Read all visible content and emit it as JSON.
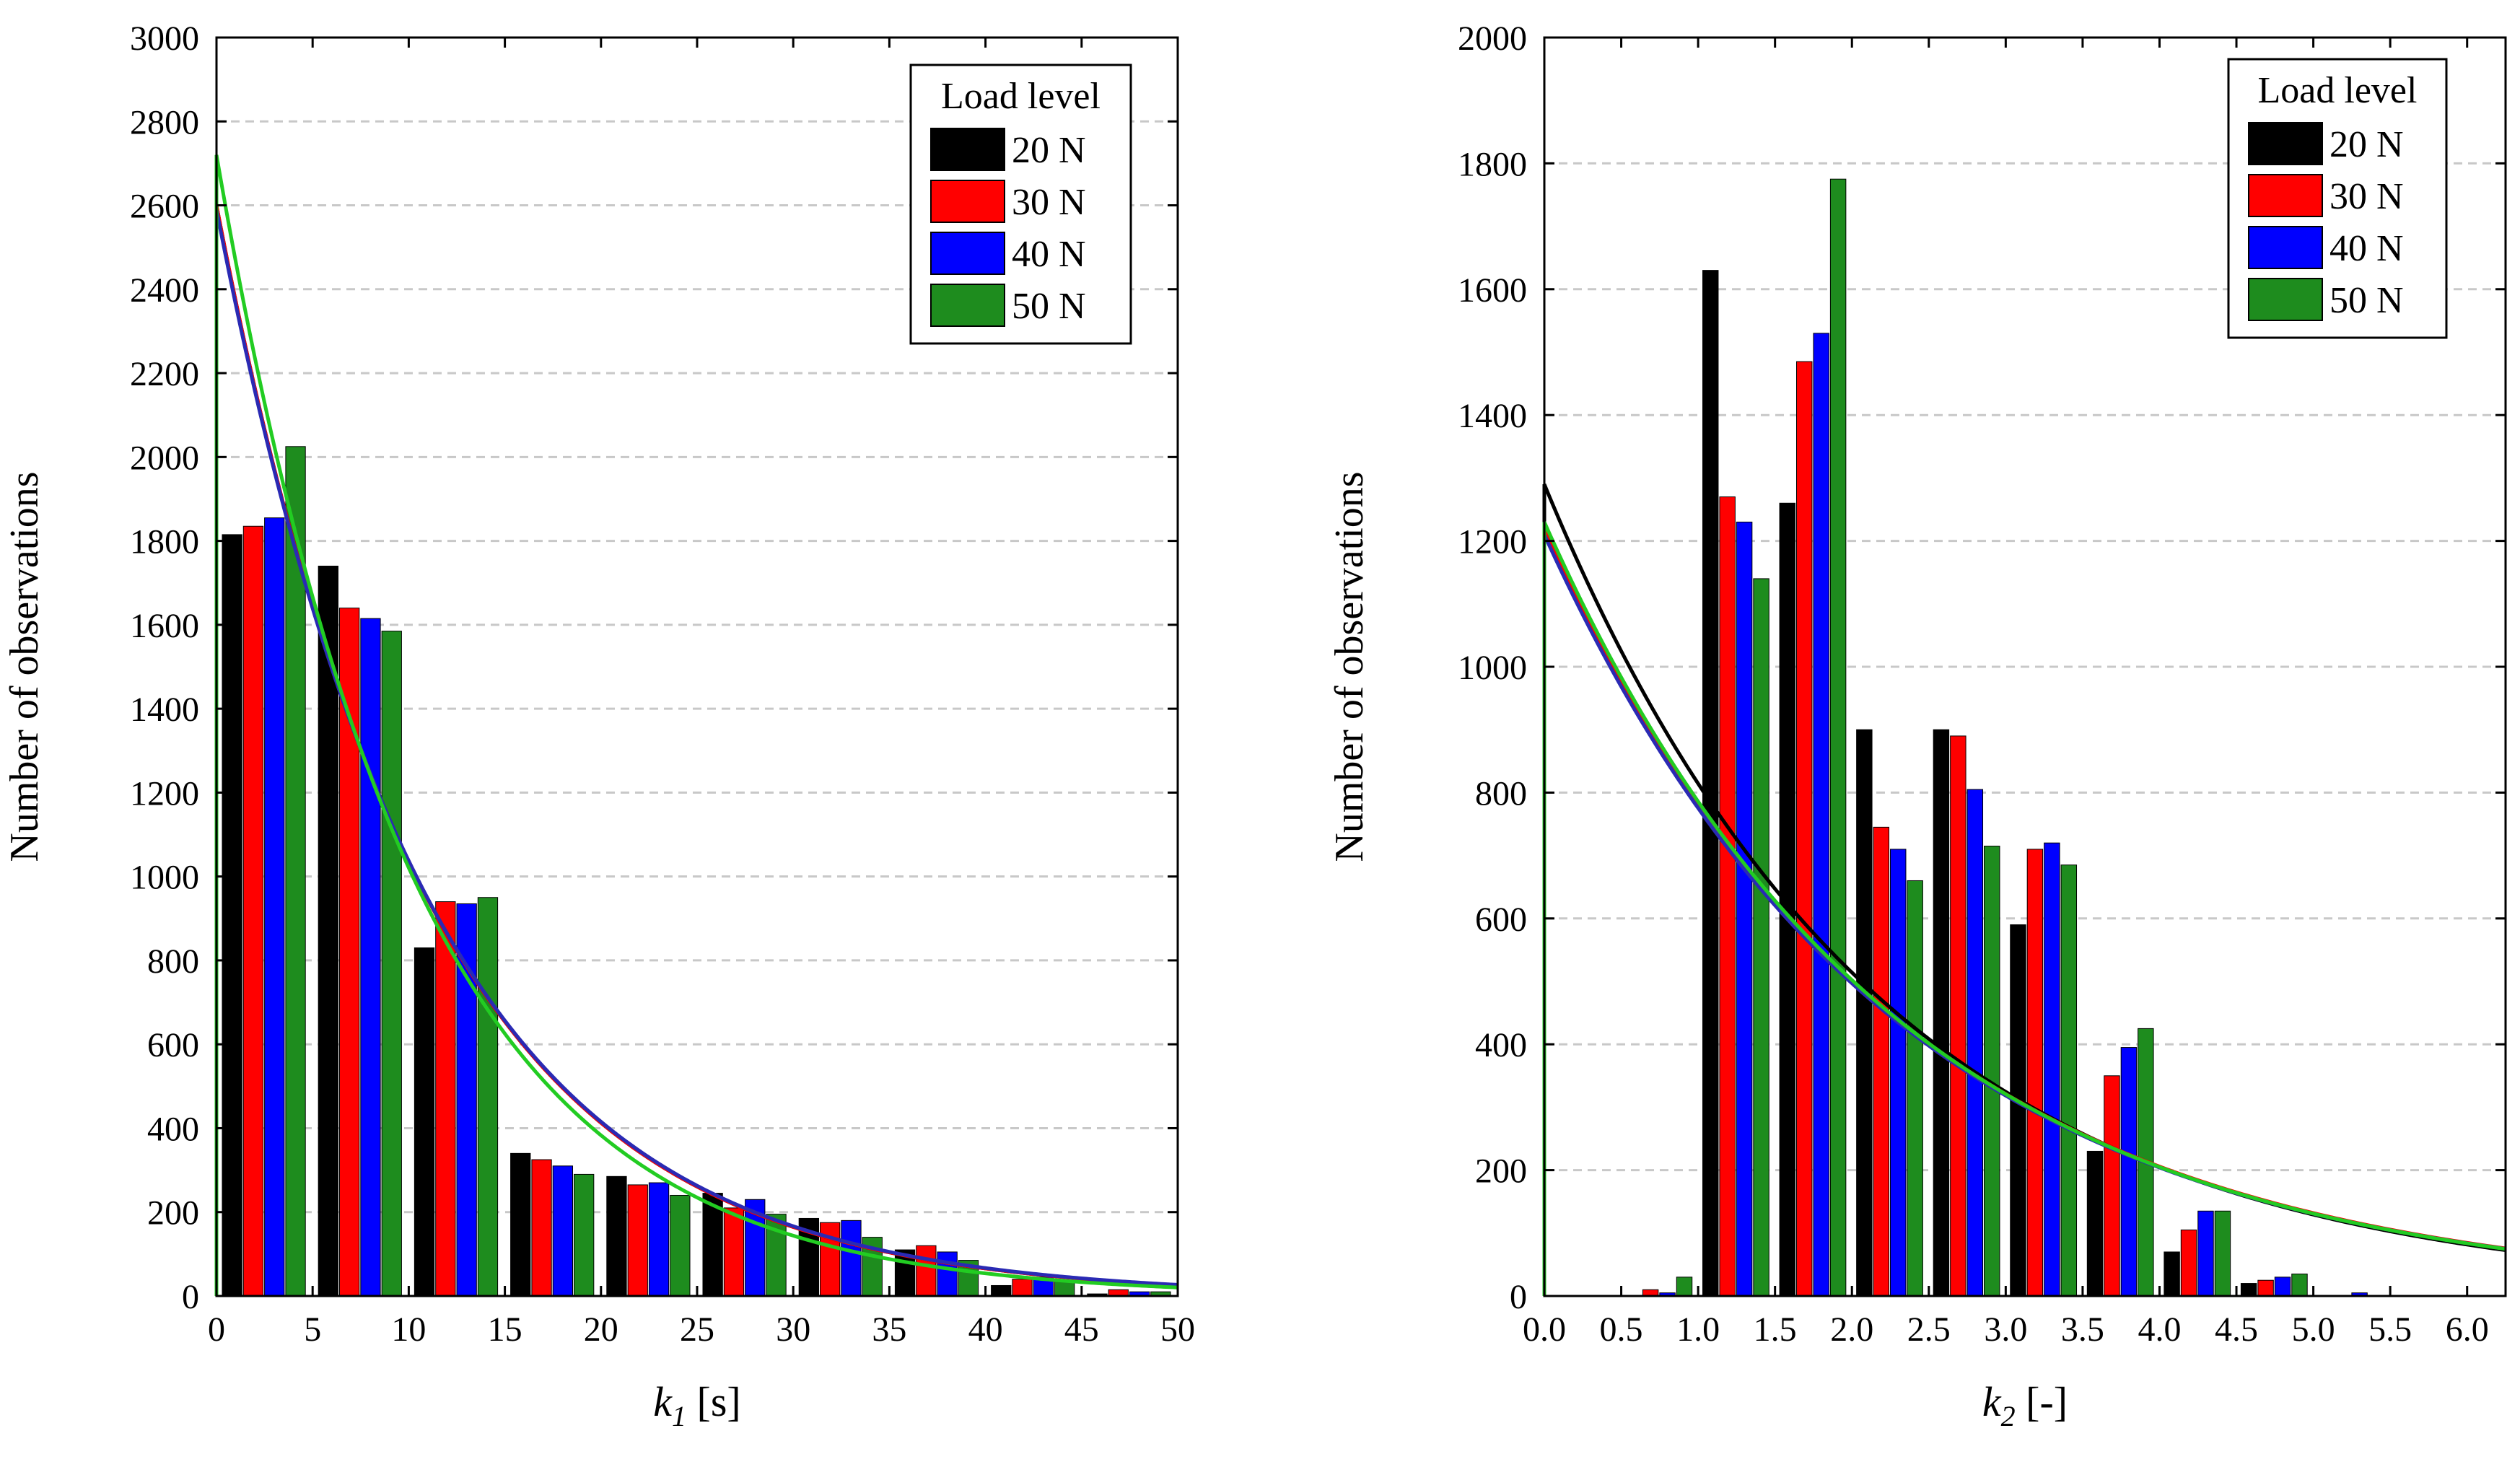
{
  "chart_data": [
    {
      "type": "bar",
      "title": "",
      "xlabel_var": "k",
      "xlabel_sub": "1",
      "xlabel_unit": " [s]",
      "ylabel": "Number of observations",
      "xlim": [
        0,
        50
      ],
      "ylim": [
        0,
        3000
      ],
      "xticks": [
        0,
        5,
        10,
        15,
        20,
        25,
        30,
        35,
        40,
        45,
        50
      ],
      "xtick_labels": [
        "0",
        "5",
        "10",
        "15",
        "20",
        "25",
        "30",
        "35",
        "40",
        "45",
        "50"
      ],
      "yticks": [
        0,
        200,
        400,
        600,
        800,
        1000,
        1200,
        1400,
        1600,
        1800,
        2000,
        2200,
        2400,
        2600,
        2800,
        3000
      ],
      "ytick_labels": [
        "0",
        "200",
        "400",
        "600",
        "800",
        "1000",
        "1200",
        "1400",
        "1600",
        "1800",
        "2000",
        "2200",
        "2400",
        "2600",
        "2800",
        "3000"
      ],
      "grid": "horizontal dashed",
      "bin_width": 5,
      "bin_starts": [
        0,
        5,
        10,
        15,
        20,
        25,
        30,
        35,
        40,
        45
      ],
      "series": [
        {
          "name": "20 N",
          "color": "#000000",
          "values": [
            1815,
            1740,
            830,
            340,
            285,
            245,
            185,
            110,
            25,
            5
          ]
        },
        {
          "name": "30 N",
          "color": "#ff0000",
          "values": [
            1835,
            1640,
            940,
            325,
            265,
            210,
            175,
            120,
            40,
            15
          ]
        },
        {
          "name": "40 N",
          "color": "#0000ff",
          "values": [
            1855,
            1615,
            935,
            310,
            270,
            230,
            180,
            105,
            45,
            10
          ]
        },
        {
          "name": "50 N",
          "color": "#1e8c1e",
          "values": [
            2025,
            1585,
            950,
            290,
            240,
            195,
            140,
            85,
            35,
            10
          ]
        }
      ],
      "fits": [
        {
          "name": "20 N",
          "color": "#000000",
          "amplitude": 2600,
          "rate": 0.092
        },
        {
          "name": "30 N",
          "color": "#ff0000",
          "amplitude": 2600,
          "rate": 0.092
        },
        {
          "name": "40 N",
          "color": "#2a2ab4",
          "amplitude": 2590,
          "rate": 0.0915
        },
        {
          "name": "50 N",
          "color": "#22cc22",
          "amplitude": 2720,
          "rate": 0.098
        }
      ],
      "legend": {
        "title": "Load level",
        "position": "top-right",
        "entries": [
          "20 N",
          "30 N",
          "40 N",
          "50 N"
        ]
      }
    },
    {
      "type": "bar",
      "title": "",
      "xlabel_var": "k",
      "xlabel_sub": "2",
      "xlabel_unit": " [-]",
      "ylabel": "Number of observations",
      "xlim": [
        0,
        6.25
      ],
      "ylim": [
        0,
        2000
      ],
      "xticks": [
        0,
        0.5,
        1,
        1.5,
        2,
        2.5,
        3,
        3.5,
        4,
        4.5,
        5,
        5.5,
        6
      ],
      "xtick_labels": [
        "0.0",
        "0.5",
        "1.0",
        "1.5",
        "2.0",
        "2.5",
        "3.0",
        "3.5",
        "4.0",
        "4.5",
        "5.0",
        "5.5",
        "6.0"
      ],
      "yticks": [
        0,
        200,
        400,
        600,
        800,
        1000,
        1200,
        1400,
        1600,
        1800,
        2000
      ],
      "ytick_labels": [
        "0",
        "200",
        "400",
        "600",
        "800",
        "1000",
        "1200",
        "1400",
        "1600",
        "1800",
        "2000"
      ],
      "grid": "horizontal dashed",
      "bin_width": 0.5,
      "bin_starts": [
        0.5,
        1.0,
        1.5,
        2.0,
        2.5,
        3.0,
        3.5,
        4.0,
        4.5,
        5.0
      ],
      "series": [
        {
          "name": "20 N",
          "color": "#000000",
          "values": [
            0,
            1630,
            1260,
            900,
            900,
            590,
            230,
            70,
            20,
            0
          ]
        },
        {
          "name": "30 N",
          "color": "#ff0000",
          "values": [
            10,
            1270,
            1485,
            745,
            890,
            710,
            350,
            105,
            25,
            0
          ]
        },
        {
          "name": "40 N",
          "color": "#0000ff",
          "values": [
            5,
            1230,
            1530,
            710,
            805,
            720,
            395,
            135,
            30,
            5
          ]
        },
        {
          "name": "50 N",
          "color": "#1e8c1e",
          "values": [
            30,
            1140,
            1775,
            660,
            715,
            685,
            425,
            135,
            35,
            0
          ]
        }
      ],
      "fits": [
        {
          "name": "20 N",
          "color": "#000000",
          "amplitude": 1290,
          "rate": 0.46
        },
        {
          "name": "30 N",
          "color": "#ff0000",
          "amplitude": 1220,
          "rate": 0.445
        },
        {
          "name": "40 N",
          "color": "#2a2ab4",
          "amplitude": 1210,
          "rate": 0.445
        },
        {
          "name": "50 N",
          "color": "#22cc22",
          "amplitude": 1230,
          "rate": 0.448
        }
      ],
      "legend": {
        "title": "Load level",
        "position": "top-right",
        "entries": [
          "20 N",
          "30 N",
          "40 N",
          "50 N"
        ]
      }
    }
  ]
}
